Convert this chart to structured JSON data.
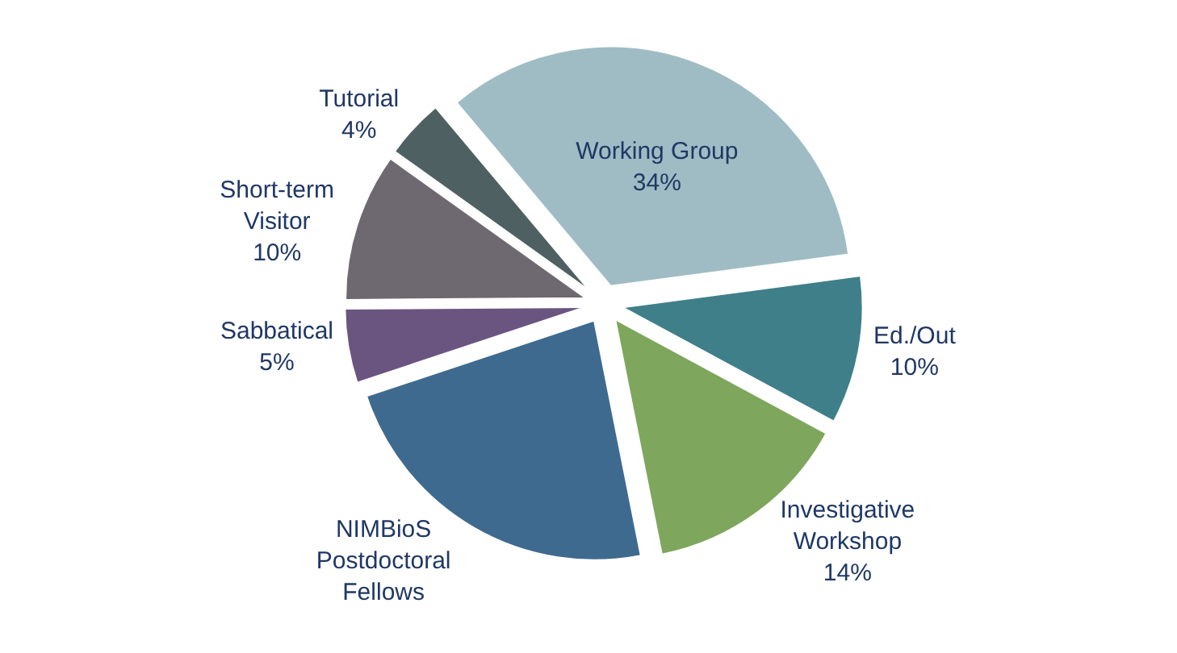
{
  "chart_data": {
    "type": "pie",
    "categories": [
      "Working Group",
      "Ed./Out",
      "Investigative Workshop",
      "NIMBioS Postdoctoral Fellows",
      "Sabbatical",
      "Short-term Visitor",
      "Tutorial"
    ],
    "values": [
      34,
      10,
      14,
      23,
      5,
      10,
      4
    ],
    "value_labels": [
      "34%",
      "10%",
      "14%",
      null,
      "5%",
      "10%",
      "4%"
    ],
    "colors": [
      "#9fbcc4",
      "#3f7f8a",
      "#7ea65c",
      "#3f6a8f",
      "#6a5580",
      "#6e6870",
      "#4f6062"
    ],
    "legend": false
  }
}
